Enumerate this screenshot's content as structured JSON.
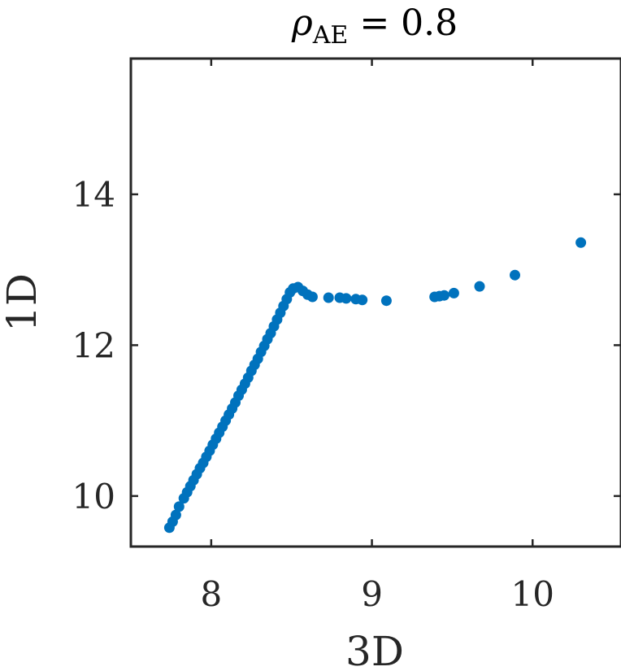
{
  "chart_data": {
    "type": "scatter",
    "title": {
      "symbol": "ρ",
      "subscript": "AE",
      "relation": "= 0.8"
    },
    "xlabel": "3D",
    "ylabel": "1D",
    "xlim": [
      7.5,
      10.55
    ],
    "ylim": [
      9.33,
      15.8
    ],
    "xticks": [
      8,
      9,
      10
    ],
    "yticks": [
      10,
      12,
      14
    ],
    "xtick_labels": [
      "8",
      "9",
      "10"
    ],
    "ytick_labels": [
      "10",
      "12",
      "14"
    ],
    "grid": false,
    "marker_color": "#0072BD",
    "axis_color": "#262626",
    "series": [
      {
        "x": [
          7.74,
          7.76,
          7.78,
          7.8,
          7.83,
          7.85,
          7.87,
          7.89,
          7.91,
          7.93,
          7.95,
          7.97,
          7.99,
          8.01,
          8.03,
          8.05,
          8.07,
          8.09,
          8.11,
          8.13,
          8.15,
          8.17,
          8.19,
          8.21,
          8.23,
          8.25,
          8.27,
          8.29,
          8.31,
          8.33,
          8.35,
          8.37,
          8.39,
          8.41,
          8.43,
          8.45,
          8.47,
          8.49,
          8.51,
          8.54,
          8.57,
          8.6,
          8.63,
          8.73,
          8.8,
          8.84,
          8.9,
          8.94,
          9.09,
          9.39,
          9.42,
          9.45,
          9.51,
          9.67,
          9.89,
          10.3
        ],
        "y": [
          9.58,
          9.66,
          9.75,
          9.86,
          9.97,
          10.05,
          10.13,
          10.21,
          10.29,
          10.37,
          10.44,
          10.52,
          10.6,
          10.68,
          10.76,
          10.84,
          10.92,
          11.0,
          11.08,
          11.16,
          11.24,
          11.33,
          11.41,
          11.49,
          11.57,
          11.66,
          11.74,
          11.82,
          11.91,
          11.99,
          12.08,
          12.16,
          12.25,
          12.34,
          12.43,
          12.52,
          12.61,
          12.7,
          12.75,
          12.77,
          12.72,
          12.67,
          12.64,
          12.63,
          12.63,
          12.62,
          12.61,
          12.6,
          12.59,
          12.64,
          12.65,
          12.66,
          12.69,
          12.78,
          12.93,
          13.36
        ]
      }
    ]
  }
}
